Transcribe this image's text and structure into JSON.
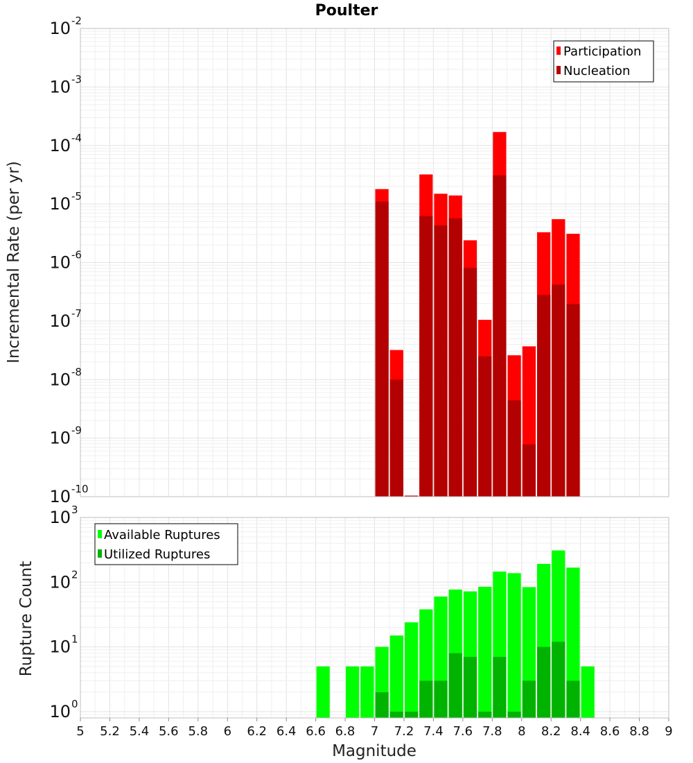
{
  "chart_data": [
    {
      "type": "bar",
      "title": "Poulter",
      "xlabel": "",
      "ylabel": "Incremental Rate (per yr)",
      "yscale": "log",
      "ylim": [
        1e-10,
        0.01
      ],
      "xlim": [
        5,
        9
      ],
      "grid": true,
      "legend_position": "top-right",
      "bin_width": 0.1,
      "x": [
        7.05,
        7.15,
        7.25,
        7.35,
        7.45,
        7.55,
        7.65,
        7.75,
        7.85,
        7.95,
        8.05,
        8.15,
        8.25,
        8.35
      ],
      "series": [
        {
          "name": "Participation",
          "color": "#ff0000",
          "values": [
            1.8e-05,
            3.2e-08,
            1e-10,
            3.2e-05,
            1.5e-05,
            1.4e-05,
            2.4e-06,
            1.05e-07,
            0.00017,
            2.6e-08,
            3.7e-08,
            3.3e-06,
            5.5e-06,
            3.1e-06
          ]
        },
        {
          "name": "Nucleation",
          "color": "#b30000",
          "values": [
            1.1e-05,
            1e-08,
            1e-10,
            6.2e-06,
            4.3e-06,
            5.7e-06,
            8.1e-07,
            2.5e-08,
            3.1e-05,
            4.4e-09,
            7.8e-10,
            2.8e-07,
            4.2e-07,
            1.95e-07
          ]
        }
      ],
      "yticks": [
        {
          "base": "10",
          "exp": "-2"
        },
        {
          "base": "10",
          "exp": "-3"
        },
        {
          "base": "10",
          "exp": "-4"
        },
        {
          "base": "10",
          "exp": "-5"
        },
        {
          "base": "10",
          "exp": "-6"
        },
        {
          "base": "10",
          "exp": "-7"
        },
        {
          "base": "10",
          "exp": "-8"
        },
        {
          "base": "10",
          "exp": "-9"
        },
        {
          "base": "10",
          "exp": "-10"
        }
      ]
    },
    {
      "type": "bar",
      "title": "",
      "xlabel": "Magnitude",
      "ylabel": "Rupture Count",
      "yscale": "log",
      "ylim": [
        0.8,
        1000
      ],
      "xlim": [
        5,
        9
      ],
      "grid": true,
      "legend_position": "top-left",
      "bin_width": 0.1,
      "x": [
        6.65,
        6.85,
        6.95,
        7.05,
        7.15,
        7.25,
        7.35,
        7.45,
        7.55,
        7.65,
        7.75,
        7.85,
        7.95,
        8.05,
        8.15,
        8.25,
        8.35,
        8.45
      ],
      "series": [
        {
          "name": "Available Ruptures",
          "color": "#00ff00",
          "values": [
            5,
            5,
            5,
            10,
            15,
            24,
            38,
            60,
            77,
            72,
            85,
            146,
            138,
            84,
            192,
            310,
            168,
            5
          ]
        },
        {
          "name": "Utilized Ruptures",
          "color": "#00b300",
          "values": [
            null,
            null,
            null,
            2,
            1,
            1,
            3,
            3,
            8,
            7,
            1,
            7,
            1,
            3,
            10,
            12,
            3,
            null
          ]
        }
      ],
      "yticks": [
        {
          "base": "10",
          "exp": "3"
        },
        {
          "base": "10",
          "exp": "2"
        },
        {
          "base": "10",
          "exp": "1"
        },
        {
          "base": "10",
          "exp": "0"
        }
      ],
      "xticks": [
        "5",
        "5.2",
        "5.4",
        "5.6",
        "5.8",
        "6",
        "6.2",
        "6.4",
        "6.6",
        "6.8",
        "7",
        "7.2",
        "7.4",
        "7.6",
        "7.8",
        "8",
        "8.2",
        "8.4",
        "8.6",
        "8.8",
        "9"
      ]
    }
  ]
}
